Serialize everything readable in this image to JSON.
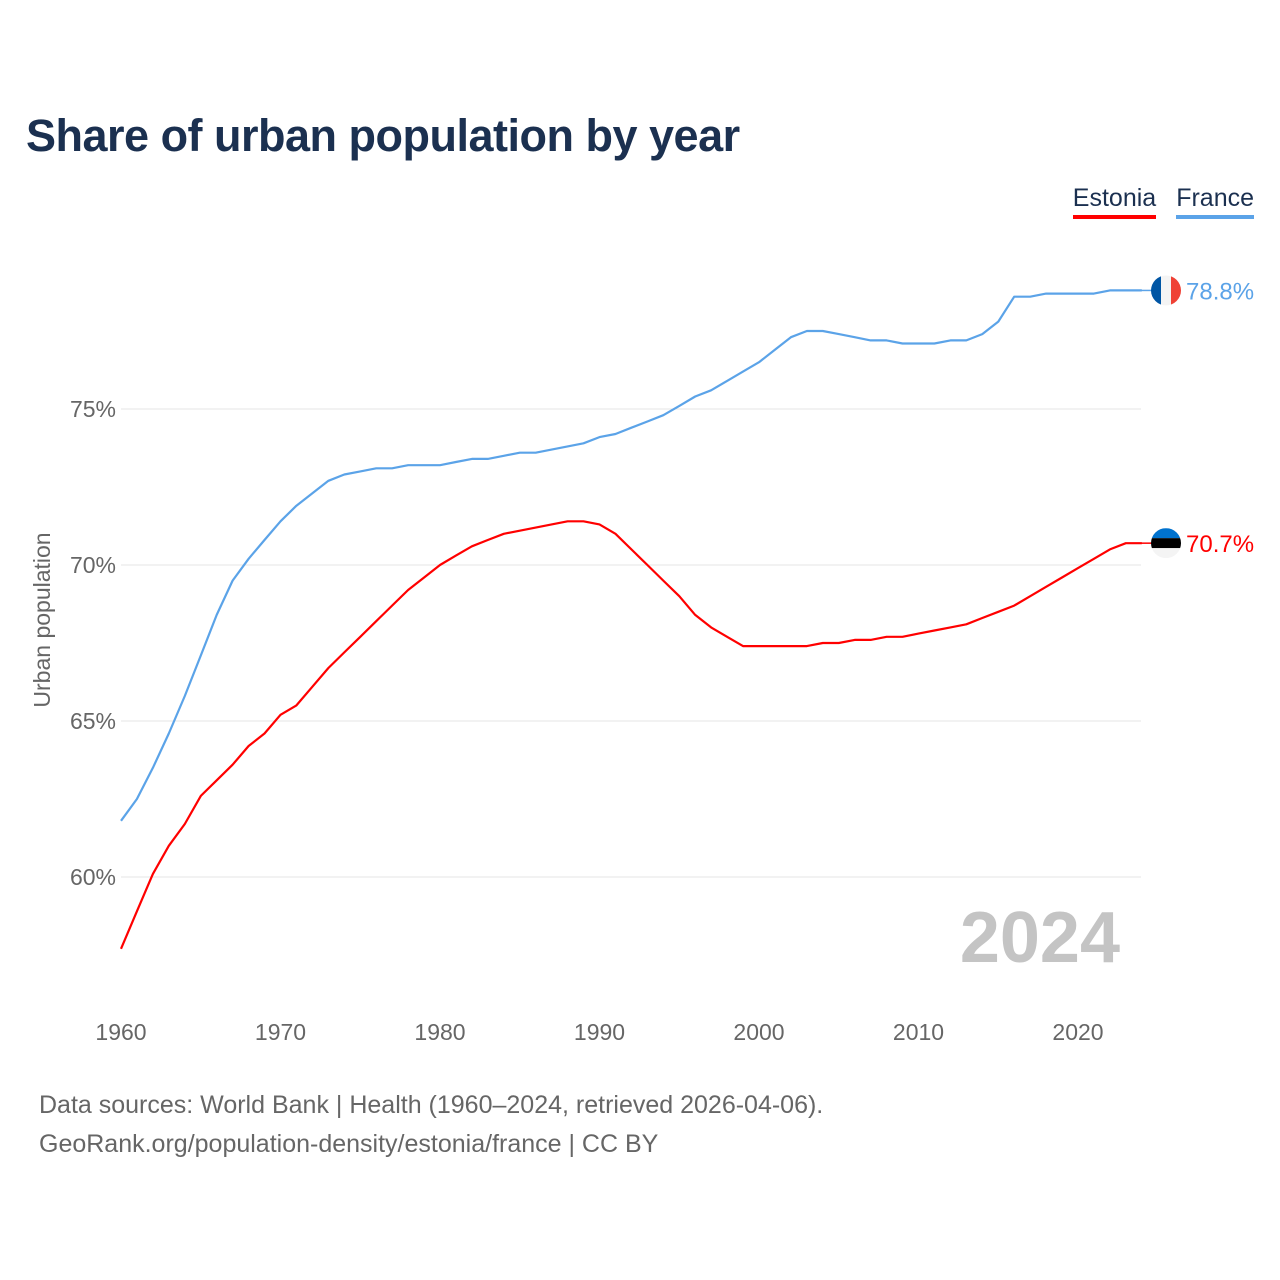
{
  "title": "Share of urban population by year",
  "footer": {
    "line1": "Data sources: World Bank | Health (1960–2024, retrieved 2026-04-06).",
    "line2": "GeoRank.org/population-density/estonia/france | CC BY"
  },
  "chart_data": {
    "type": "line",
    "title": "Share of urban population by year",
    "xlabel": "",
    "ylabel": "Urban population",
    "xlim": [
      1960,
      2024
    ],
    "ylim": [
      57.5,
      80
    ],
    "x_ticks": [
      1960,
      1970,
      1980,
      1990,
      2000,
      2010,
      2020
    ],
    "x_tick_labels": [
      "1960",
      "1970",
      "1980",
      "1990",
      "2000",
      "2010",
      "2020"
    ],
    "y_ticks": [
      60,
      65,
      70,
      75
    ],
    "y_tick_labels": [
      "60%",
      "65%",
      "70%",
      "75%"
    ],
    "grid": true,
    "legend_position": "top-right",
    "year_watermark": "2024",
    "x": [
      1960,
      1961,
      1962,
      1963,
      1964,
      1965,
      1966,
      1967,
      1968,
      1969,
      1970,
      1971,
      1972,
      1973,
      1974,
      1975,
      1976,
      1977,
      1978,
      1979,
      1980,
      1981,
      1982,
      1983,
      1984,
      1985,
      1986,
      1987,
      1988,
      1989,
      1990,
      1991,
      1992,
      1993,
      1994,
      1995,
      1996,
      1997,
      1998,
      1999,
      2000,
      2001,
      2002,
      2003,
      2004,
      2005,
      2006,
      2007,
      2008,
      2009,
      2010,
      2011,
      2012,
      2013,
      2014,
      2015,
      2016,
      2017,
      2018,
      2019,
      2020,
      2021,
      2022,
      2023,
      2024
    ],
    "series": [
      {
        "name": "Estonia",
        "color": "#ff0000",
        "end_label": "70.7%",
        "flag": "estonia-flag",
        "values": [
          57.7,
          58.9,
          60.1,
          61.0,
          61.7,
          62.6,
          63.1,
          63.6,
          64.2,
          64.6,
          65.2,
          65.5,
          66.1,
          66.7,
          67.2,
          67.7,
          68.2,
          68.7,
          69.2,
          69.6,
          70.0,
          70.3,
          70.6,
          70.8,
          71.0,
          71.1,
          71.2,
          71.3,
          71.4,
          71.4,
          71.3,
          71.0,
          70.5,
          70.0,
          69.5,
          69.0,
          68.4,
          68.0,
          67.7,
          67.4,
          67.4,
          67.4,
          67.4,
          67.4,
          67.5,
          67.5,
          67.6,
          67.6,
          67.7,
          67.7,
          67.8,
          67.9,
          68.0,
          68.1,
          68.3,
          68.5,
          68.7,
          69.0,
          69.3,
          69.6,
          69.9,
          70.2,
          70.5,
          70.7,
          70.7
        ]
      },
      {
        "name": "France",
        "color": "#5ba3e8",
        "end_label": "78.8%",
        "flag": "france-flag",
        "values": [
          61.8,
          62.5,
          63.5,
          64.6,
          65.8,
          67.1,
          68.4,
          69.5,
          70.2,
          70.8,
          71.4,
          71.9,
          72.3,
          72.7,
          72.9,
          73.0,
          73.1,
          73.1,
          73.2,
          73.2,
          73.2,
          73.3,
          73.4,
          73.4,
          73.5,
          73.6,
          73.6,
          73.7,
          73.8,
          73.9,
          74.1,
          74.2,
          74.4,
          74.6,
          74.8,
          75.1,
          75.4,
          75.6,
          75.9,
          76.2,
          76.5,
          76.9,
          77.3,
          77.5,
          77.5,
          77.4,
          77.3,
          77.2,
          77.2,
          77.1,
          77.1,
          77.1,
          77.2,
          77.2,
          77.4,
          77.8,
          78.6,
          78.6,
          78.7,
          78.7,
          78.7,
          78.7,
          78.8,
          78.8,
          78.8
        ]
      }
    ]
  }
}
